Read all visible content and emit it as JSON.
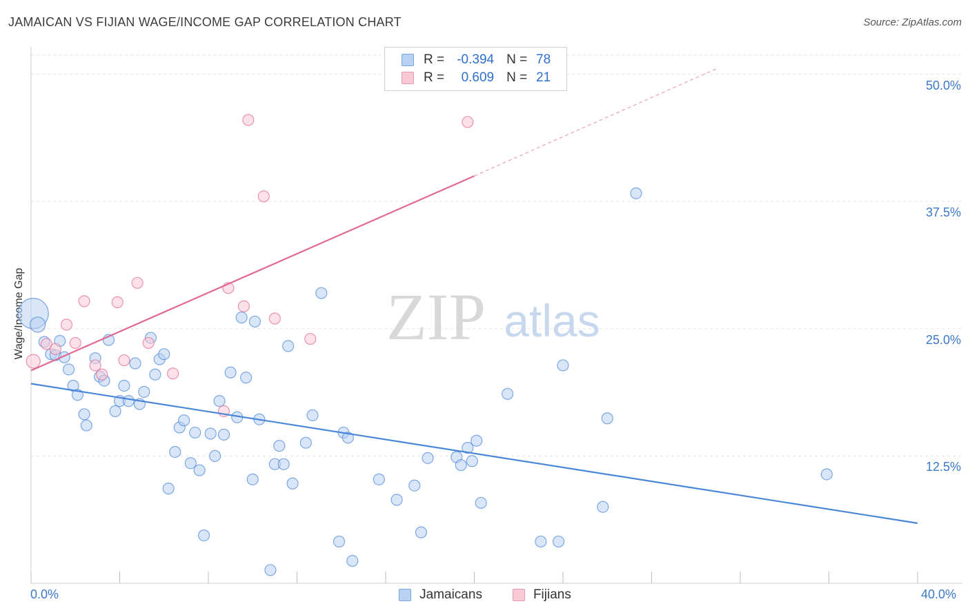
{
  "title": "JAMAICAN VS FIJIAN WAGE/INCOME GAP CORRELATION CHART",
  "source": "Source: ZipAtlas.com",
  "watermark": {
    "zip": "ZIP",
    "atlas": "atlas"
  },
  "legend": {
    "rows": [
      {
        "r_label": "R =",
        "r_value": "-0.394",
        "n_label": "N =",
        "n_value": "78",
        "color": "#a9c7f0"
      },
      {
        "r_label": "R =",
        "r_value": "0.609",
        "n_label": "N =",
        "n_value": "21",
        "color": "#f7b8cb"
      }
    ]
  },
  "bottom_legend": [
    {
      "label": "Jamaicans",
      "color": "#a9c7f0"
    },
    {
      "label": "Fijians",
      "color": "#f7b8cb"
    }
  ],
  "chart_data": {
    "type": "scatter",
    "title": "JAMAICAN VS FIJIAN WAGE/INCOME GAP CORRELATION CHART",
    "xlabel": "",
    "ylabel": "Wage/Income Gap",
    "xlim": [
      0,
      40
    ],
    "ylim": [
      0,
      52
    ],
    "x_tick_labels": [
      "0.0%",
      "40.0%"
    ],
    "y_ticks": [
      12.5,
      25.0,
      37.5,
      50.0
    ],
    "y_tick_labels": [
      "12.5%",
      "25.0%",
      "37.5%",
      "50.0%"
    ],
    "grid": true,
    "series": [
      {
        "name": "Jamaicans",
        "color": "#4a86d8",
        "fill": "#b9d2f3",
        "trend": {
          "x": [
            0,
            40
          ],
          "y": [
            19.6,
            5.9
          ]
        },
        "points": [
          [
            0.1,
            26.5
          ],
          [
            0.3,
            25.4
          ],
          [
            0.6,
            23.7
          ],
          [
            0.9,
            22.5
          ],
          [
            1.1,
            22.4
          ],
          [
            1.3,
            23.8
          ],
          [
            1.5,
            22.2
          ],
          [
            1.7,
            21.0
          ],
          [
            1.9,
            19.4
          ],
          [
            2.1,
            18.5
          ],
          [
            2.4,
            16.6
          ],
          [
            2.5,
            15.5
          ],
          [
            2.9,
            22.1
          ],
          [
            3.1,
            20.3
          ],
          [
            3.3,
            19.9
          ],
          [
            3.5,
            23.9
          ],
          [
            3.8,
            16.9
          ],
          [
            4.0,
            17.9
          ],
          [
            4.2,
            19.4
          ],
          [
            4.4,
            17.9
          ],
          [
            4.7,
            21.6
          ],
          [
            4.9,
            17.6
          ],
          [
            5.1,
            18.8
          ],
          [
            5.4,
            24.1
          ],
          [
            5.6,
            20.5
          ],
          [
            5.8,
            22.0
          ],
          [
            6.0,
            22.5
          ],
          [
            6.2,
            9.3
          ],
          [
            6.5,
            12.9
          ],
          [
            6.7,
            15.3
          ],
          [
            6.9,
            16.0
          ],
          [
            7.2,
            11.8
          ],
          [
            7.4,
            14.8
          ],
          [
            7.6,
            11.1
          ],
          [
            7.8,
            4.7
          ],
          [
            8.1,
            14.7
          ],
          [
            8.3,
            12.5
          ],
          [
            8.5,
            17.9
          ],
          [
            8.7,
            14.6
          ],
          [
            9.0,
            20.7
          ],
          [
            9.3,
            16.3
          ],
          [
            9.5,
            26.1
          ],
          [
            9.7,
            20.2
          ],
          [
            10.0,
            10.2
          ],
          [
            10.1,
            25.7
          ],
          [
            10.3,
            16.1
          ],
          [
            10.8,
            1.3
          ],
          [
            11.0,
            11.7
          ],
          [
            11.2,
            13.5
          ],
          [
            11.4,
            11.7
          ],
          [
            11.6,
            23.3
          ],
          [
            11.8,
            9.8
          ],
          [
            12.4,
            13.8
          ],
          [
            12.7,
            16.5
          ],
          [
            13.1,
            28.5
          ],
          [
            13.9,
            4.1
          ],
          [
            14.1,
            14.8
          ],
          [
            14.3,
            14.3
          ],
          [
            14.5,
            2.2
          ],
          [
            15.7,
            10.2
          ],
          [
            16.5,
            8.2
          ],
          [
            17.3,
            9.6
          ],
          [
            17.6,
            5.0
          ],
          [
            17.9,
            12.3
          ],
          [
            19.2,
            12.4
          ],
          [
            19.4,
            11.6
          ],
          [
            19.7,
            13.3
          ],
          [
            19.9,
            12.0
          ],
          [
            20.1,
            14.0
          ],
          [
            20.3,
            7.9
          ],
          [
            21.5,
            18.6
          ],
          [
            23.0,
            4.1
          ],
          [
            23.8,
            4.1
          ],
          [
            24.0,
            21.4
          ],
          [
            25.8,
            7.5
          ],
          [
            26.0,
            16.2
          ],
          [
            27.3,
            38.3
          ],
          [
            35.9,
            10.7
          ]
        ]
      },
      {
        "name": "Fijians",
        "color": "#e16990",
        "fill": "#f9c9d7",
        "trend": {
          "x": [
            0,
            20
          ],
          "y": [
            20.9,
            40.0
          ]
        },
        "trend_extension": {
          "x": [
            20,
            31
          ],
          "y": [
            40.0,
            50.6
          ]
        },
        "points": [
          [
            0.1,
            21.8
          ],
          [
            0.7,
            23.5
          ],
          [
            1.1,
            23.0
          ],
          [
            1.6,
            25.4
          ],
          [
            2.0,
            23.6
          ],
          [
            2.4,
            27.7
          ],
          [
            2.9,
            21.4
          ],
          [
            3.2,
            20.5
          ],
          [
            3.9,
            27.6
          ],
          [
            4.2,
            21.9
          ],
          [
            4.8,
            29.5
          ],
          [
            5.3,
            23.6
          ],
          [
            6.4,
            20.6
          ],
          [
            8.7,
            16.9
          ],
          [
            8.9,
            29.0
          ],
          [
            9.6,
            27.2
          ],
          [
            9.8,
            45.5
          ],
          [
            10.5,
            38.0
          ],
          [
            11.0,
            26.0
          ],
          [
            12.6,
            24.0
          ],
          [
            19.7,
            45.3
          ]
        ]
      }
    ]
  }
}
